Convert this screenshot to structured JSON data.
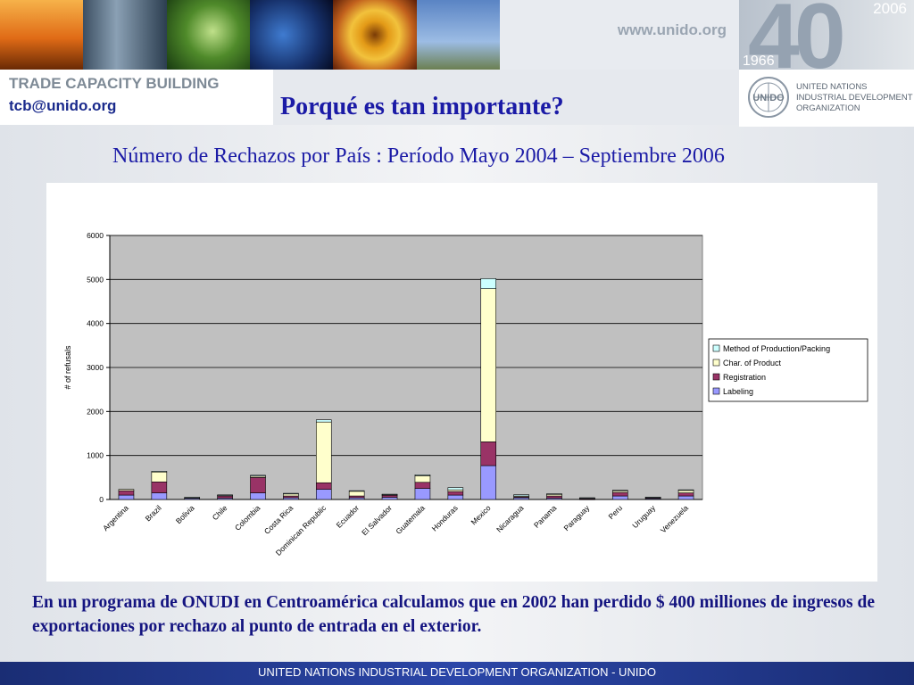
{
  "header": {
    "website": "www.unido.org",
    "anniversary": {
      "number": "40",
      "year_start": "1966",
      "year_end": "2006"
    },
    "tcb_title": "TRADE CAPACITY BUILDING",
    "tcb_email": "tcb@unido.org",
    "org_logo_text": "UNIDO",
    "org_name_lines": [
      "UNITED NATIONS",
      "INDUSTRIAL DEVELOPMENT",
      "ORGANIZATION"
    ]
  },
  "slide": {
    "headline": "Porqué es tan importante?",
    "subtitle": "Número de Rechazos por País : Período  Mayo 2004 – Septiembre 2006",
    "paragraph": "En un programa de ONUDI en Centroamérica calculamos que en 2002  han perdido $ 400 milliones de ingresos de exportaciones por rechazo al punto de entrada en el exterior.",
    "footer": "UNITED NATIONS INDUSTRIAL DEVELOPMENT ORGANIZATION - UNIDO"
  },
  "chart_data": {
    "type": "bar",
    "stacked": true,
    "categories": [
      "Argentina",
      "Brazil",
      "Bolivia",
      "Chile",
      "Colombia",
      "Costa Rica",
      "Dominican Republic",
      "Ecuador",
      "El Salvador",
      "Guatemala",
      "Honduras",
      "Mexico",
      "Nicaragua",
      "Panama",
      "Paraguay",
      "Peru",
      "Uruguay",
      "Venezuela"
    ],
    "series": [
      {
        "name": "Labeling",
        "color": "#9999ff",
        "values": [
          100,
          150,
          30,
          30,
          150,
          40,
          230,
          40,
          50,
          250,
          100,
          770,
          40,
          30,
          10,
          80,
          20,
          80
        ]
      },
      {
        "name": "Registration",
        "color": "#993366",
        "values": [
          100,
          250,
          10,
          50,
          350,
          40,
          150,
          40,
          50,
          140,
          80,
          540,
          20,
          50,
          5,
          80,
          25,
          70
        ]
      },
      {
        "name": "Char. of Product",
        "color": "#ffffcc",
        "values": [
          30,
          230,
          5,
          20,
          30,
          50,
          1380,
          110,
          10,
          150,
          40,
          3480,
          20,
          40,
          20,
          40,
          5,
          60
        ]
      },
      {
        "name": "Method of Production/Packing",
        "color": "#ccffff",
        "values": [
          0,
          10,
          5,
          5,
          20,
          10,
          50,
          10,
          10,
          20,
          50,
          230,
          30,
          10,
          5,
          10,
          5,
          10
        ]
      }
    ],
    "xlabel": "",
    "ylabel": "# of refusals",
    "ylim": [
      0,
      6000
    ],
    "yticks": [
      0,
      1000,
      2000,
      3000,
      4000,
      5000,
      6000
    ],
    "grid": true,
    "legend": "right",
    "plot_background": "#c0c0c0"
  }
}
